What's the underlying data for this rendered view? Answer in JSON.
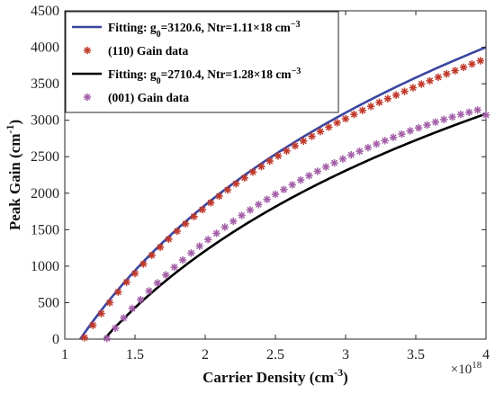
{
  "chart_data": {
    "type": "line",
    "xlabel": "Carrier Density (cm",
    "xlabel_sup": "-3",
    "xlabel_end": ")",
    "ylabel": "Peak Gain (cm",
    "ylabel_sup": "-1",
    "ylabel_end": ")",
    "x_exponent_base": "×10",
    "x_exponent_power": "18",
    "xlim": [
      1,
      4
    ],
    "ylim": [
      0,
      4500
    ],
    "xticks": [
      1,
      1.5,
      2,
      2.5,
      3,
      3.5,
      4
    ],
    "xtick_labels": [
      "1",
      "1.5",
      "2",
      "2.5",
      "3",
      "3.5",
      "4"
    ],
    "yticks": [
      0,
      500,
      1000,
      1500,
      2000,
      2500,
      3000,
      3500,
      4000,
      4500
    ],
    "ytick_labels": [
      "0",
      "500",
      "1000",
      "1500",
      "2000",
      "2500",
      "3000",
      "3500",
      "4000",
      "4500"
    ],
    "grid": false,
    "legend_position": "top-left",
    "series": [
      {
        "key": "fit110",
        "kind": "line",
        "color": "#3b45a0",
        "g0": 3120.6,
        "ntr": 1.11,
        "label_parts": [
          "Fitting: g",
          "0",
          "=3120.6, Ntr=1.11×18 cm",
          "−3"
        ]
      },
      {
        "key": "data110",
        "kind": "markers",
        "color": "#c0392b",
        "label_parts": [
          "(110) Gain data"
        ],
        "x": [
          1.14,
          1.2,
          1.26,
          1.32,
          1.38,
          1.44,
          1.5,
          1.56,
          1.62,
          1.68,
          1.74,
          1.8,
          1.86,
          1.92,
          1.98,
          2.04,
          2.1,
          2.16,
          2.22,
          2.28,
          2.34,
          2.4,
          2.46,
          2.52,
          2.58,
          2.64,
          2.7,
          2.76,
          2.82,
          2.88,
          2.94,
          3.0,
          3.06,
          3.12,
          3.18,
          3.24,
          3.3,
          3.36,
          3.42,
          3.48,
          3.54,
          3.6,
          3.66,
          3.72,
          3.78,
          3.84,
          3.9,
          3.96
        ],
        "y": [
          20,
          190,
          350,
          500,
          645,
          780,
          900,
          1030,
          1150,
          1260,
          1370,
          1480,
          1580,
          1680,
          1775,
          1870,
          1960,
          2045,
          2130,
          2210,
          2290,
          2365,
          2440,
          2510,
          2580,
          2650,
          2715,
          2780,
          2845,
          2905,
          2965,
          3020,
          3080,
          3135,
          3190,
          3245,
          3295,
          3345,
          3395,
          3445,
          3495,
          3540,
          3590,
          3635,
          3680,
          3725,
          3770,
          3815
        ]
      },
      {
        "key": "fit001",
        "kind": "line",
        "color": "#000000",
        "g0": 2710.4,
        "ntr": 1.28,
        "label_parts": [
          "Fitting: g",
          "0",
          "=2710.4, Ntr=1.28×18 cm",
          "−3"
        ]
      },
      {
        "key": "data001",
        "kind": "markers",
        "color": "#a35fa8",
        "label_parts": [
          "(001) Gain data"
        ],
        "x": [
          1.3,
          1.36,
          1.42,
          1.48,
          1.54,
          1.6,
          1.66,
          1.72,
          1.78,
          1.84,
          1.9,
          1.96,
          2.02,
          2.08,
          2.14,
          2.2,
          2.26,
          2.32,
          2.38,
          2.44,
          2.5,
          2.56,
          2.62,
          2.68,
          2.74,
          2.8,
          2.86,
          2.92,
          2.98,
          3.04,
          3.1,
          3.16,
          3.22,
          3.28,
          3.34,
          3.4,
          3.46,
          3.52,
          3.58,
          3.64,
          3.7,
          3.76,
          3.82,
          3.88,
          3.94,
          4.0
        ],
        "y": [
          10,
          150,
          290,
          420,
          540,
          660,
          770,
          880,
          985,
          1085,
          1180,
          1275,
          1365,
          1450,
          1535,
          1615,
          1695,
          1770,
          1845,
          1915,
          1985,
          2050,
          2115,
          2180,
          2240,
          2300,
          2360,
          2415,
          2470,
          2525,
          2575,
          2625,
          2675,
          2720,
          2765,
          2810,
          2855,
          2895,
          2935,
          2975,
          3010,
          3045,
          3080,
          3110,
          3140,
          3070
        ]
      }
    ]
  }
}
